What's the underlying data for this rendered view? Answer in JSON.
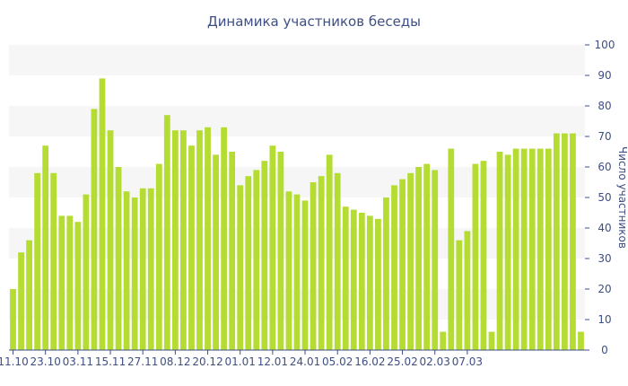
{
  "chart_data": {
    "type": "bar",
    "title": "Динамика участников беседы",
    "xlabel": "",
    "ylabel": "Число участников",
    "ylim": [
      0,
      100
    ],
    "yticks": [
      0,
      10,
      20,
      30,
      40,
      50,
      60,
      70,
      80,
      90,
      100
    ],
    "x_tick_labels": [
      {
        "index": 0,
        "label": "11.10"
      },
      {
        "index": 4,
        "label": "23.10"
      },
      {
        "index": 8,
        "label": "03.11"
      },
      {
        "index": 12,
        "label": "15.11"
      },
      {
        "index": 16,
        "label": "27.11"
      },
      {
        "index": 20,
        "label": "08.12"
      },
      {
        "index": 24,
        "label": "20.12"
      },
      {
        "index": 28,
        "label": "01.01"
      },
      {
        "index": 32,
        "label": "12.01"
      },
      {
        "index": 36,
        "label": "24.01"
      },
      {
        "index": 40,
        "label": "05.02"
      },
      {
        "index": 44,
        "label": "16.02"
      },
      {
        "index": 48,
        "label": "25.02"
      },
      {
        "index": 52,
        "label": "02.03"
      },
      {
        "index": 56,
        "label": "07.03"
      }
    ],
    "values": [
      20,
      32,
      36,
      58,
      67,
      58,
      44,
      44,
      42,
      51,
      79,
      89,
      72,
      60,
      52,
      50,
      53,
      53,
      61,
      77,
      72,
      72,
      67,
      72,
      73,
      64,
      73,
      65,
      54,
      57,
      59,
      62,
      67,
      65,
      52,
      51,
      49,
      55,
      57,
      64,
      58,
      47,
      46,
      45,
      44,
      43,
      50,
      54,
      56,
      58,
      60,
      61,
      59,
      6,
      66,
      36,
      39,
      61,
      62,
      6,
      65,
      64,
      66,
      66,
      66,
      66,
      66,
      71,
      71,
      71,
      6
    ],
    "grid": "alternating horizontal bands",
    "colors": {
      "bar": "#b5dc32",
      "band": "#f6f6f6",
      "text": "#3e4f84",
      "axis": "#3e4f84"
    }
  }
}
